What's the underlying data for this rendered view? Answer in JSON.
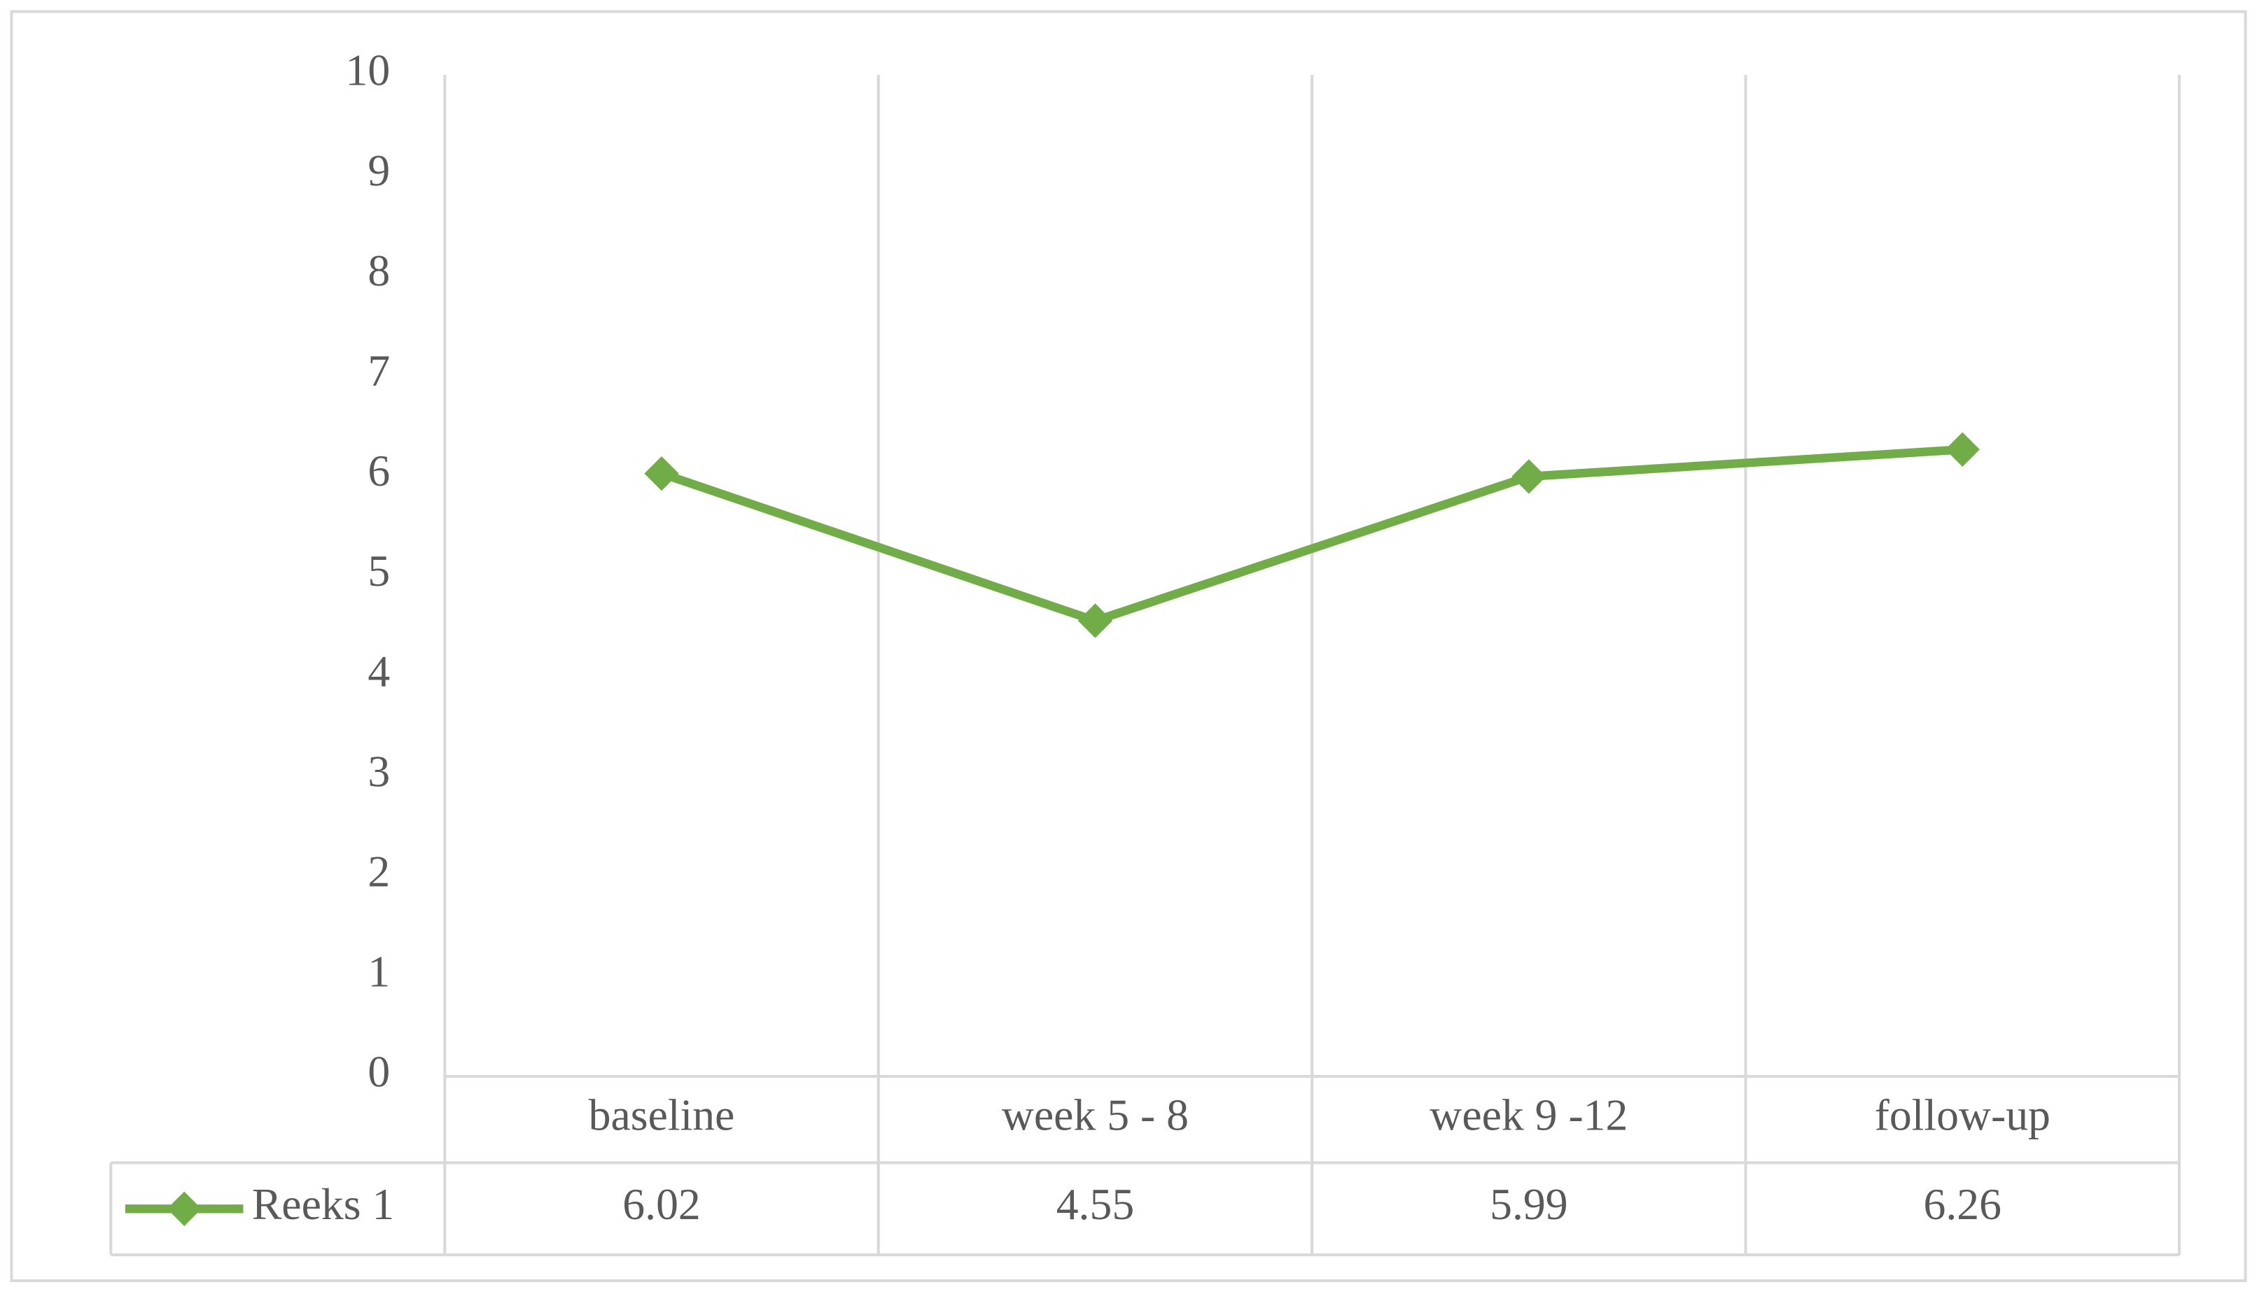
{
  "chart_data": {
    "type": "line",
    "categories": [
      "baseline",
      "week 5 - 8",
      "week 9 -12",
      "follow-up"
    ],
    "series": [
      {
        "name": "Reeks 1",
        "color": "#70ad47",
        "values": [
          6.02,
          4.55,
          5.99,
          6.26
        ]
      }
    ],
    "ylim": [
      0,
      10
    ],
    "yticks": [
      0,
      1,
      2,
      3,
      4,
      5,
      6,
      7,
      8,
      9,
      10
    ],
    "data_table": true
  }
}
